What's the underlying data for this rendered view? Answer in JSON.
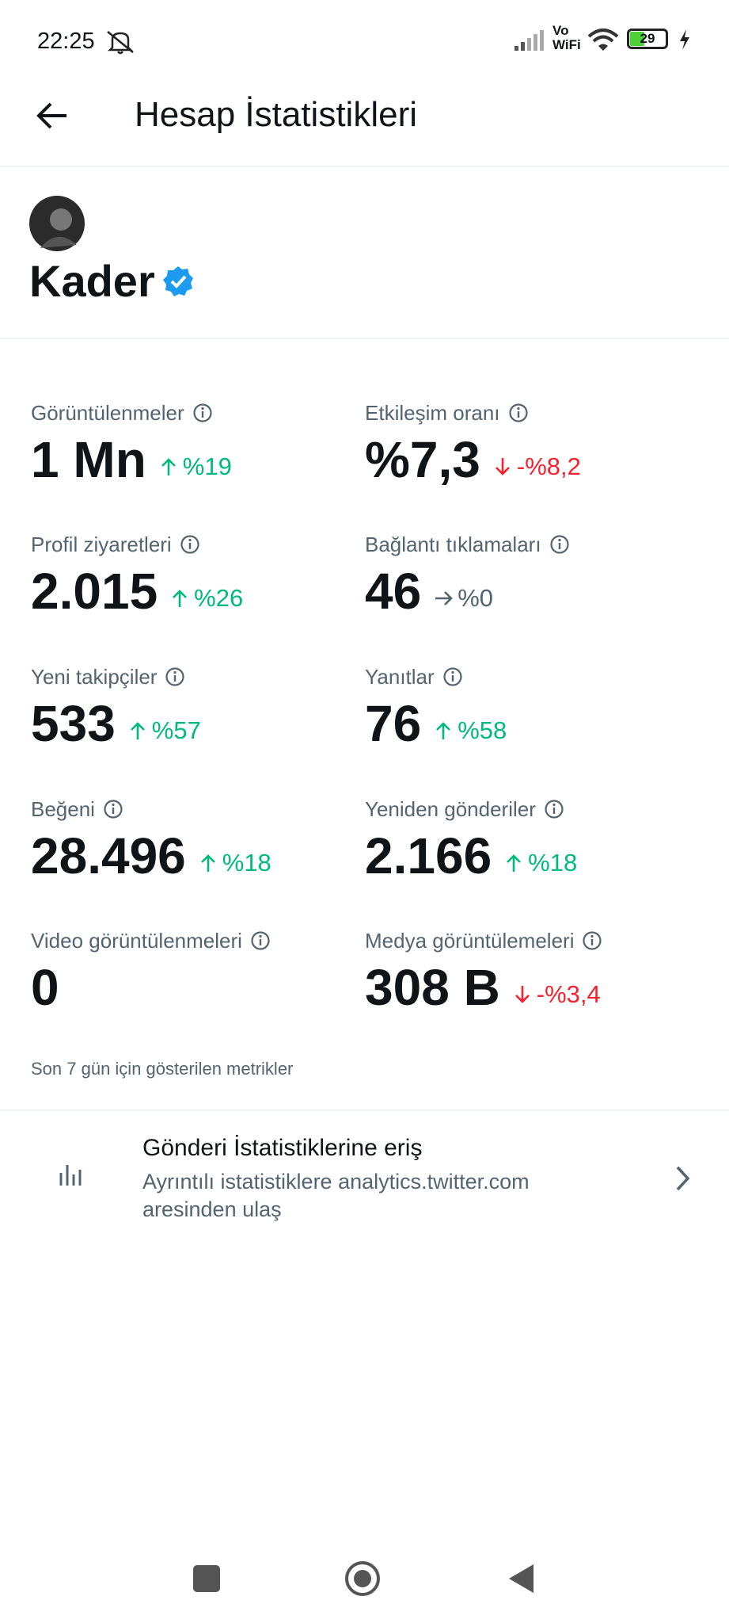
{
  "status_bar": {
    "time": "22:25",
    "network": "Vo WiFi",
    "battery": "29"
  },
  "header": {
    "title": "Hesap İstatistikleri"
  },
  "profile": {
    "name": "Kader"
  },
  "metrics": [
    {
      "label": "Görüntülenmeler",
      "value": "1 Mn",
      "change": "%19",
      "trend": "up"
    },
    {
      "label": "Etkileşim oranı",
      "value": "%7,3",
      "change": "-%8,2",
      "trend": "down"
    },
    {
      "label": "Profil ziyaretleri",
      "value": "2.015",
      "change": "%26",
      "trend": "up"
    },
    {
      "label": "Bağlantı tıklamaları",
      "value": "46",
      "change": "%0",
      "trend": "flat"
    },
    {
      "label": "Yeni takipçiler",
      "value": "533",
      "change": "%57",
      "trend": "up"
    },
    {
      "label": "Yanıtlar",
      "value": "76",
      "change": "%58",
      "trend": "up"
    },
    {
      "label": "Beğeni",
      "value": "28.496",
      "change": "%18",
      "trend": "up"
    },
    {
      "label": "Yeniden gönderiler",
      "value": "2.166",
      "change": "%18",
      "trend": "up"
    },
    {
      "label": "Video görüntülenmeleri",
      "value": "0"
    },
    {
      "label": "Medya görüntülemeleri",
      "value": "308 B",
      "change": "-%3,4",
      "trend": "down"
    }
  ],
  "footnote": "Son 7 gün için gösterilen metrikler",
  "link_row": {
    "title": "Gönderi İstatistiklerine eriş",
    "subtitle_lines": [
      "Ayrıntılı istatistiklere analytics.twitter.com",
      "aresinden ulaş"
    ]
  }
}
